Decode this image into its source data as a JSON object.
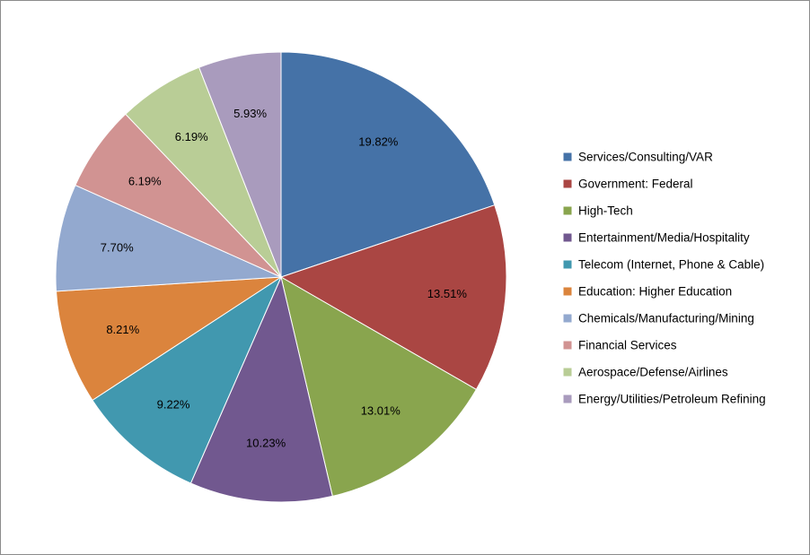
{
  "chart_data": {
    "type": "pie",
    "start": "12 o'clock",
    "direction": "clockwise",
    "legend_position": "right",
    "categories": [
      "Services/Consulting/VAR",
      "Government: Federal",
      "High-Tech",
      "Entertainment/Media/Hospitality",
      "Telecom (Internet, Phone & Cable)",
      "Education: Higher Education",
      "Chemicals/Manufacturing/Mining",
      "Financial Services",
      "Aerospace/Defense/Airlines",
      "Energy/Utilities/Petroleum Refining"
    ],
    "values": [
      19.82,
      13.51,
      13.01,
      10.23,
      9.22,
      8.21,
      7.7,
      6.19,
      6.19,
      5.93
    ],
    "labels": [
      "19.82%",
      "13.51%",
      "13.01%",
      "10.23%",
      "9.22%",
      "8.21%",
      "7.70%",
      "6.19%",
      "6.19%",
      "5.93%"
    ],
    "colors": [
      "#4572a7",
      "#aa4643",
      "#89a54e",
      "#71588f",
      "#4198af",
      "#db843d",
      "#93a9cf",
      "#d19392",
      "#b9cd96",
      "#a99bbd"
    ]
  }
}
